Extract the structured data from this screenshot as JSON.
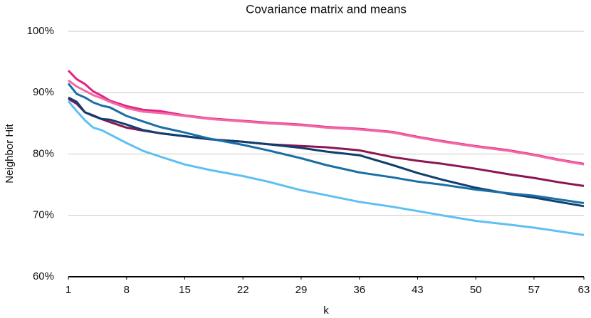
{
  "chart_data": {
    "type": "line",
    "title": "Covariance matrix and means",
    "xlabel": "k",
    "ylabel": "Neighbor Hit",
    "x": [
      1,
      2,
      3,
      4,
      5,
      6,
      8,
      10,
      12,
      15,
      18,
      22,
      25,
      29,
      32,
      36,
      40,
      43,
      46,
      50,
      54,
      57,
      60,
      63
    ],
    "xlim": [
      1,
      63
    ],
    "xticks": [
      1,
      8,
      15,
      22,
      29,
      36,
      43,
      50,
      57,
      63
    ],
    "ylim": [
      60,
      100
    ],
    "yticks": [
      {
        "value": 60,
        "label": "60%"
      },
      {
        "value": 70,
        "label": "70%"
      },
      {
        "value": 80,
        "label": "80%"
      },
      {
        "value": 90,
        "label": "90%"
      },
      {
        "value": 100,
        "label": "100%"
      }
    ],
    "grid": true,
    "series": [
      {
        "color": "#e3237f",
        "values": [
          93.6,
          92.2,
          91.4,
          90.2,
          89.5,
          88.7,
          87.8,
          87.2,
          87.0,
          86.3,
          85.8,
          85.4,
          85.1,
          84.8,
          84.4,
          84.1,
          83.6,
          82.8,
          82.1,
          81.3,
          80.6,
          79.9,
          79.1,
          78.4
        ]
      },
      {
        "color": "#f169a6",
        "values": [
          92.0,
          91.0,
          90.3,
          89.6,
          89.1,
          88.5,
          87.5,
          86.9,
          86.7,
          86.2,
          85.7,
          85.3,
          85.0,
          84.7,
          84.3,
          84.0,
          83.5,
          82.7,
          82.0,
          81.2,
          80.5,
          79.8,
          79.0,
          78.3
        ]
      },
      {
        "color": "#8c1654",
        "values": [
          89.0,
          88.2,
          86.8,
          86.3,
          85.7,
          85.2,
          84.3,
          83.8,
          83.4,
          82.9,
          82.4,
          82.0,
          81.6,
          81.3,
          81.1,
          80.6,
          79.5,
          78.9,
          78.4,
          77.6,
          76.7,
          76.1,
          75.4,
          74.8
        ]
      },
      {
        "color": "#0f3f6e",
        "values": [
          89.2,
          88.5,
          86.8,
          86.2,
          85.7,
          85.6,
          84.8,
          83.9,
          83.4,
          82.9,
          82.4,
          82.0,
          81.6,
          81.0,
          80.4,
          79.8,
          78.2,
          76.9,
          75.8,
          74.5,
          73.5,
          72.9,
          72.2,
          71.5
        ]
      },
      {
        "color": "#1b6ea6",
        "values": [
          91.5,
          89.8,
          89.2,
          88.4,
          87.9,
          87.6,
          86.2,
          85.3,
          84.4,
          83.5,
          82.5,
          81.5,
          80.6,
          79.3,
          78.2,
          77.0,
          76.2,
          75.5,
          75.0,
          74.2,
          73.6,
          73.2,
          72.6,
          72.0
        ]
      },
      {
        "color": "#5ec0f2",
        "values": [
          88.6,
          87.0,
          85.5,
          84.3,
          83.9,
          83.2,
          81.8,
          80.5,
          79.6,
          78.3,
          77.4,
          76.4,
          75.5,
          74.1,
          73.3,
          72.2,
          71.4,
          70.7,
          70.0,
          69.1,
          68.5,
          68.0,
          67.4,
          66.8
        ]
      }
    ]
  }
}
